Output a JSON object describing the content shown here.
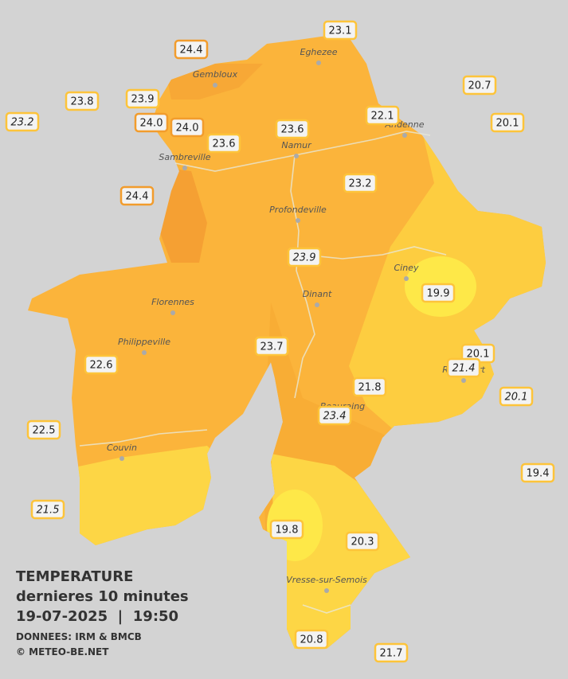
{
  "title": {
    "line1": "TEMPERATURE",
    "line2": "dernieres 10 minutes",
    "line3": "19-07-2025  |  19:50",
    "source": "DONNEES: IRM & BMCB",
    "credit": "© METEO-BE.NET"
  },
  "towns": [
    {
      "label": "Gembloux"
    },
    {
      "label": "Eghezee"
    },
    {
      "label": "Andenne"
    },
    {
      "label": "Namur"
    },
    {
      "label": "Sambreville"
    },
    {
      "label": "Profondeville"
    },
    {
      "label": "Ciney"
    },
    {
      "label": "Dinant"
    },
    {
      "label": "Florennes"
    },
    {
      "label": "Philippeville"
    },
    {
      "label": "Rochefort"
    },
    {
      "label": "Beauraing"
    },
    {
      "label": "Couvin"
    },
    {
      "label": "Vresse-sur-Semois"
    }
  ],
  "stations": [
    {
      "value": "23.1"
    },
    {
      "value": "24.4"
    },
    {
      "value": "23.8"
    },
    {
      "value": "23.9"
    },
    {
      "value": "23.2"
    },
    {
      "value": "24.0"
    },
    {
      "value": "24.0"
    },
    {
      "value": "23.6"
    },
    {
      "value": "23.6"
    },
    {
      "value": "22.1"
    },
    {
      "value": "20.7"
    },
    {
      "value": "20.1"
    },
    {
      "value": "24.4"
    },
    {
      "value": "23.2"
    },
    {
      "value": "23.9"
    },
    {
      "value": "19.9"
    },
    {
      "value": "23.7"
    },
    {
      "value": "20.1"
    },
    {
      "value": "21.4"
    },
    {
      "value": "22.6"
    },
    {
      "value": "21.8"
    },
    {
      "value": "20.1"
    },
    {
      "value": "23.4"
    },
    {
      "value": "22.5"
    },
    {
      "value": "19.4"
    },
    {
      "value": "21.5"
    },
    {
      "value": "19.8"
    },
    {
      "value": "20.3"
    },
    {
      "value": "20.8"
    },
    {
      "value": "21.7"
    }
  ]
}
